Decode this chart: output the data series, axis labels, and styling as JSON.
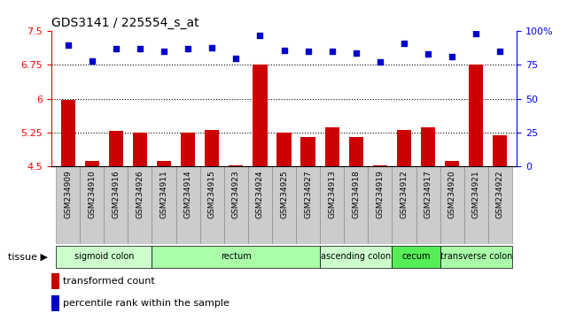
{
  "title": "GDS3141 / 225554_s_at",
  "samples": [
    "GSM234909",
    "GSM234910",
    "GSM234916",
    "GSM234926",
    "GSM234911",
    "GSM234914",
    "GSM234915",
    "GSM234923",
    "GSM234924",
    "GSM234925",
    "GSM234927",
    "GSM234913",
    "GSM234918",
    "GSM234919",
    "GSM234912",
    "GSM234917",
    "GSM234920",
    "GSM234921",
    "GSM234922"
  ],
  "bar_values": [
    5.98,
    4.62,
    5.28,
    5.25,
    4.62,
    5.25,
    5.3,
    4.52,
    6.75,
    5.25,
    5.15,
    5.36,
    5.15,
    4.52,
    5.3,
    5.35,
    4.62,
    6.75,
    5.18
  ],
  "dot_values": [
    90,
    78,
    87,
    87,
    85,
    87,
    88,
    80,
    97,
    86,
    85,
    85,
    84,
    77,
    91,
    83,
    81,
    98,
    85
  ],
  "ylim_left": [
    4.5,
    7.5
  ],
  "ylim_right": [
    0,
    100
  ],
  "yticks_left": [
    4.5,
    5.25,
    6.0,
    6.75,
    7.5
  ],
  "ytick_labels_left": [
    "4.5",
    "5.25",
    "6",
    "6.75",
    "7.5"
  ],
  "yticks_right": [
    0,
    25,
    50,
    75,
    100
  ],
  "ytick_labels_right": [
    "0",
    "25",
    "50",
    "75",
    "100%"
  ],
  "hlines": [
    5.25,
    6.0,
    6.75
  ],
  "bar_color": "#cc0000",
  "dot_color": "#0000cc",
  "tissue_groups": [
    {
      "label": "sigmoid colon",
      "start": 0,
      "end": 4,
      "color": "#ccffcc"
    },
    {
      "label": "rectum",
      "start": 4,
      "end": 11,
      "color": "#aaffaa"
    },
    {
      "label": "ascending colon",
      "start": 11,
      "end": 14,
      "color": "#ccffcc"
    },
    {
      "label": "cecum",
      "start": 14,
      "end": 16,
      "color": "#55ee55"
    },
    {
      "label": "transverse colon",
      "start": 16,
      "end": 19,
      "color": "#aaffaa"
    }
  ],
  "legend_bar_label": "transformed count",
  "legend_dot_label": "percentile rank within the sample",
  "tissue_label": "tissue",
  "tick_bg_color": "#cccccc",
  "fig_bg_color": "#ffffff"
}
